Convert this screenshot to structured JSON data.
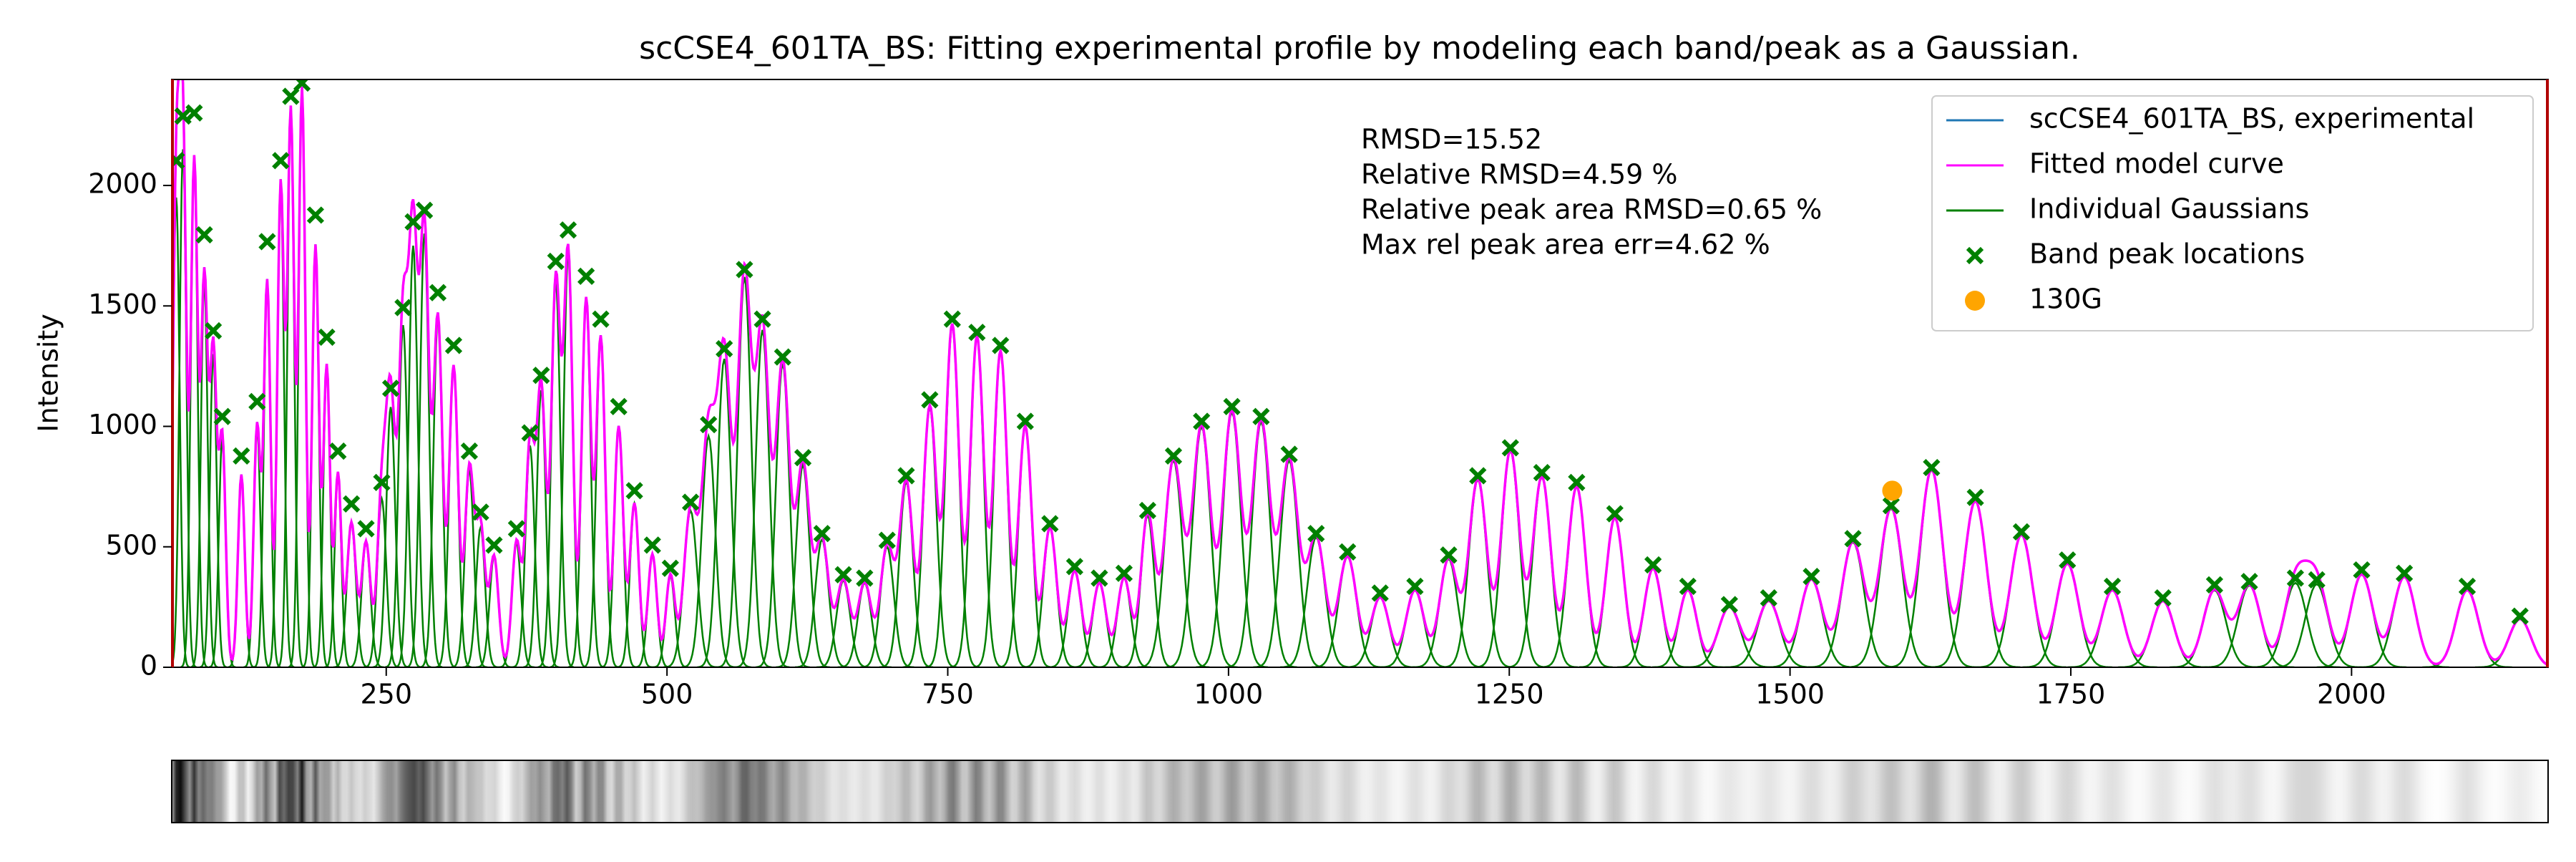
{
  "chart_data": {
    "type": "line",
    "title": "scCSE4_601TA_BS: Fitting experimental profile by modeling each band/peak as a Gaussian.",
    "y_label": "Intensity",
    "annotations": [
      "RMSD=15.52",
      "Relative RMSD=4.59 %",
      "Relative peak area RMSD=0.65 %",
      "Max rel peak area err=4.62 %"
    ],
    "xlim": [
      59,
      2175
    ],
    "ylim": [
      0,
      2440
    ],
    "xticks": [
      250,
      500,
      750,
      1000,
      1250,
      1500,
      1750,
      2000
    ],
    "yticks": [
      0,
      500,
      1000,
      1500,
      2000
    ],
    "legend": "upper right",
    "series": [
      {
        "name": "scCSE4_601TA_BS, experimental",
        "color": "#1f77b4",
        "style": "gaussian-sum"
      },
      {
        "name": "Fitted model curve",
        "color": "#ff00ff",
        "style": "gaussian-sum"
      },
      {
        "name": "Individual Gaussians",
        "color": "#008000",
        "style": "gaussians",
        "x": [
          63,
          69,
          79,
          88,
          96,
          104,
          121,
          135,
          144,
          156,
          165,
          175,
          187,
          197,
          207,
          219,
          232,
          246,
          254,
          265,
          274,
          284,
          296,
          310,
          324,
          334,
          346,
          366,
          378,
          388,
          401,
          412,
          428,
          441,
          457,
          471,
          487,
          503,
          521,
          537,
          551,
          569,
          585,
          603,
          621,
          638,
          657,
          676,
          696,
          713,
          734,
          754,
          776,
          797,
          819,
          841,
          863,
          885,
          907,
          928,
          951,
          976,
          1003,
          1029,
          1054,
          1078,
          1106,
          1135,
          1166,
          1196,
          1222,
          1251,
          1279,
          1310,
          1344,
          1378,
          1409,
          1446,
          1481,
          1519,
          1556,
          1590,
          1626,
          1665,
          1706,
          1747,
          1787,
          1832,
          1878,
          1909,
          1950,
          1969,
          2009,
          2047,
          2103,
          2150
        ],
        "values": [
          1950,
          2150,
          2100,
          1600,
          1300,
          950,
          800,
          1000,
          1600,
          2000,
          2300,
          2400,
          1750,
          1250,
          800,
          600,
          520,
          700,
          1080,
          1420,
          1750,
          1800,
          1450,
          1250,
          820,
          580,
          460,
          520,
          920,
          1150,
          1600,
          1720,
          1530,
          1370,
          1000,
          680,
          470,
          380,
          650,
          960,
          1280,
          1620,
          1400,
          1260,
          840,
          530,
          360,
          350,
          500,
          770,
          1080,
          1420,
          1370,
          1310,
          1000,
          580,
          400,
          350,
          370,
          630,
          860,
          1000,
          1060,
          1020,
          860,
          540,
          460,
          290,
          320,
          450,
          780,
          900,
          790,
          750,
          620,
          410,
          320,
          250,
          275,
          365,
          520,
          660,
          820,
          690,
          550,
          430,
          320,
          275,
          320,
          340,
          350,
          345,
          385,
          375,
          320,
          200
        ],
        "widths": [
          3,
          3,
          3,
          3,
          3,
          3,
          3,
          3,
          3,
          3,
          3,
          3,
          3,
          3,
          3,
          4,
          4,
          4,
          4,
          4,
          4,
          4,
          4,
          4,
          4,
          4,
          4,
          4,
          4,
          4,
          4,
          4,
          4,
          4,
          4,
          4,
          4,
          4,
          6,
          6,
          6,
          6,
          6,
          6,
          6,
          6,
          6,
          6,
          6,
          6,
          6,
          6,
          6,
          6,
          6,
          6,
          6,
          6,
          6,
          6,
          8,
          8,
          8,
          8,
          8,
          8,
          8,
          8,
          8,
          8,
          8,
          8,
          8,
          8,
          8,
          8,
          8,
          10,
          10,
          10,
          10,
          10,
          10,
          10,
          10,
          10,
          10,
          10,
          10,
          10,
          10,
          10,
          10,
          10,
          10,
          10
        ]
      },
      {
        "name": "Band peak locations",
        "color": "#008000",
        "style": "x-marker",
        "x": [
          63,
          69,
          79,
          88,
          96,
          104,
          121,
          135,
          144,
          156,
          165,
          175,
          187,
          197,
          207,
          219,
          232,
          246,
          254,
          265,
          274,
          284,
          296,
          310,
          324,
          334,
          346,
          366,
          378,
          388,
          401,
          412,
          428,
          441,
          457,
          471,
          487,
          503,
          521,
          537,
          551,
          569,
          585,
          603,
          621,
          638,
          657,
          676,
          696,
          713,
          734,
          754,
          776,
          797,
          819,
          841,
          863,
          885,
          907,
          928,
          951,
          976,
          1003,
          1029,
          1054,
          1078,
          1106,
          1135,
          1166,
          1196,
          1222,
          1251,
          1279,
          1310,
          1344,
          1378,
          1409,
          1446,
          1481,
          1519,
          1556,
          1590,
          1626,
          1665,
          1706,
          1747,
          1787,
          1832,
          1878,
          1909,
          1950,
          1969,
          2009,
          2047,
          2103,
          2150
        ],
        "values": [
          2103,
          2288,
          2301,
          1795,
          1397,
          1041,
          877,
          1103,
          1767,
          2103,
          2370,
          2425,
          1877,
          1370,
          897,
          678,
          575,
          767,
          1158,
          1493,
          1849,
          1897,
          1555,
          1336,
          897,
          644,
          507,
          575,
          973,
          1212,
          1685,
          1815,
          1623,
          1445,
          1082,
          733,
          507,
          411,
          685,
          1007,
          1322,
          1651,
          1445,
          1288,
          870,
          555,
          384,
          370,
          527,
          795,
          1110,
          1445,
          1390,
          1336,
          1021,
          596,
          418,
          370,
          390,
          651,
          877,
          1021,
          1082,
          1041,
          884,
          555,
          479,
          308,
          336,
          466,
          795,
          911,
          808,
          767,
          637,
          425,
          336,
          260,
          288,
          377,
          534,
          671,
          829,
          705,
          562,
          445,
          336,
          288,
          342,
          356,
          370,
          363,
          404,
          390,
          336,
          212
        ]
      },
      {
        "name": "130G",
        "color": "#ffa500",
        "style": "dot",
        "x": [
          1591
        ],
        "values": [
          733
        ]
      }
    ]
  }
}
